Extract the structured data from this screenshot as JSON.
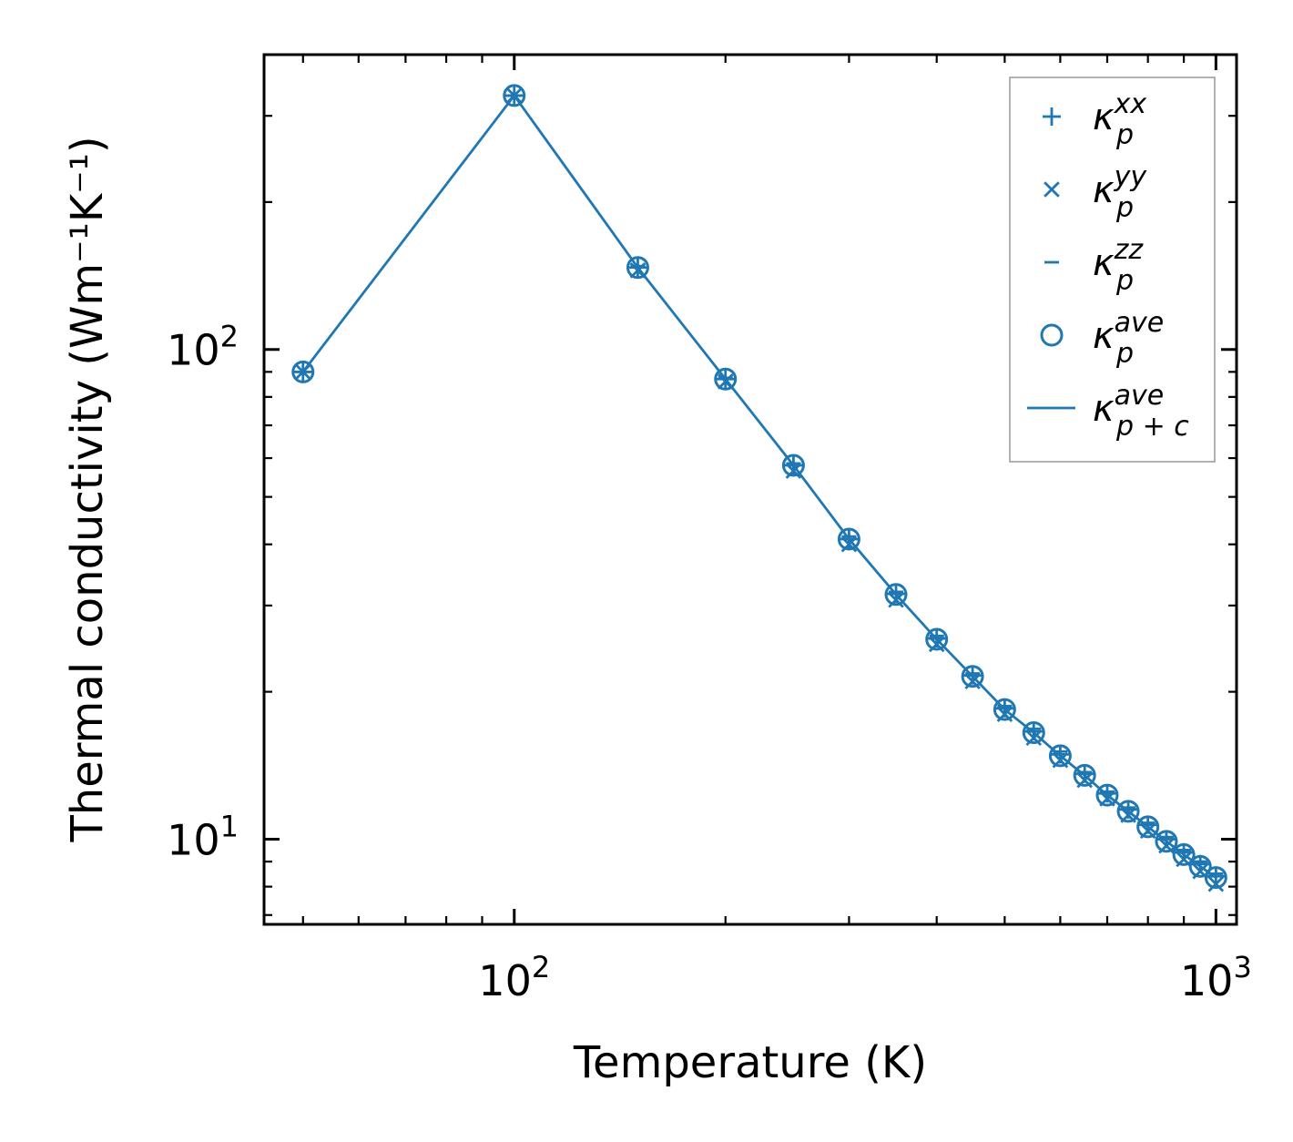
{
  "chart_data": {
    "type": "scatter",
    "xscale": "log",
    "yscale": "log",
    "xlabel": "Temperature (K)",
    "ylabel": "Thermal conductivity (Wm⁻¹K⁻¹)",
    "xlim": [
      44,
      1070
    ],
    "ylim": [
      6.7,
      400
    ],
    "x_major_ticks": [
      {
        "value": 100,
        "base": "10",
        "exp": "2"
      },
      {
        "value": 1000,
        "base": "10",
        "exp": "3"
      }
    ],
    "y_major_ticks": [
      {
        "value": 10,
        "base": "10",
        "exp": "1"
      },
      {
        "value": 100,
        "base": "10",
        "exp": "2"
      }
    ],
    "color": "#1f77b4",
    "legend_position": "top-right",
    "x": [
      50,
      100,
      150,
      200,
      250,
      300,
      350,
      400,
      450,
      500,
      550,
      600,
      650,
      700,
      750,
      800,
      850,
      900,
      950,
      1000
    ],
    "series": [
      {
        "name": "kappa_p_xx",
        "marker": "plus",
        "label": {
          "base": "κ",
          "sub": "p",
          "sup": "xx"
        },
        "values": [
          90,
          330,
          147,
          87,
          58,
          41,
          31.7,
          25.7,
          21.6,
          18.5,
          16.6,
          14.9,
          13.6,
          12.4,
          11.5,
          10.7,
          10.0,
          9.4,
          8.9,
          8.4
        ]
      },
      {
        "name": "kappa_p_yy",
        "marker": "x",
        "label": {
          "base": "κ",
          "sub": "p",
          "sup": "yy"
        },
        "values": [
          90,
          330,
          145,
          86,
          56.5,
          40,
          30.8,
          25,
          21,
          18,
          16.1,
          14.5,
          13.2,
          12.1,
          11.2,
          10.4,
          9.7,
          9.1,
          8.6,
          8.1
        ]
      },
      {
        "name": "kappa_p_zz",
        "marker": "hline",
        "label": {
          "base": "κ",
          "sub": "p",
          "sup": "zz"
        },
        "values": [
          90,
          330,
          148,
          87.5,
          58.5,
          41.5,
          32,
          26,
          21.8,
          18.7,
          16.8,
          15.1,
          13.7,
          12.5,
          11.6,
          10.8,
          10.1,
          9.5,
          9.0,
          8.5
        ]
      },
      {
        "name": "kappa_p_ave",
        "marker": "circle",
        "label": {
          "base": "κ",
          "sub": "p",
          "sup": "ave"
        },
        "values": [
          90,
          330,
          147,
          87,
          58,
          41,
          31.6,
          25.6,
          21.5,
          18.4,
          16.5,
          14.8,
          13.5,
          12.3,
          11.4,
          10.6,
          9.9,
          9.3,
          8.8,
          8.35
        ]
      },
      {
        "name": "kappa_pc_ave",
        "marker": "line",
        "label": {
          "base": "κ",
          "sub": "p + c",
          "sup": "ave"
        },
        "values": [
          90,
          330,
          147,
          87,
          58,
          41,
          31.6,
          25.6,
          21.5,
          18.4,
          16.5,
          14.8,
          13.5,
          12.3,
          11.4,
          10.6,
          9.9,
          9.3,
          8.8,
          8.35
        ]
      }
    ]
  }
}
